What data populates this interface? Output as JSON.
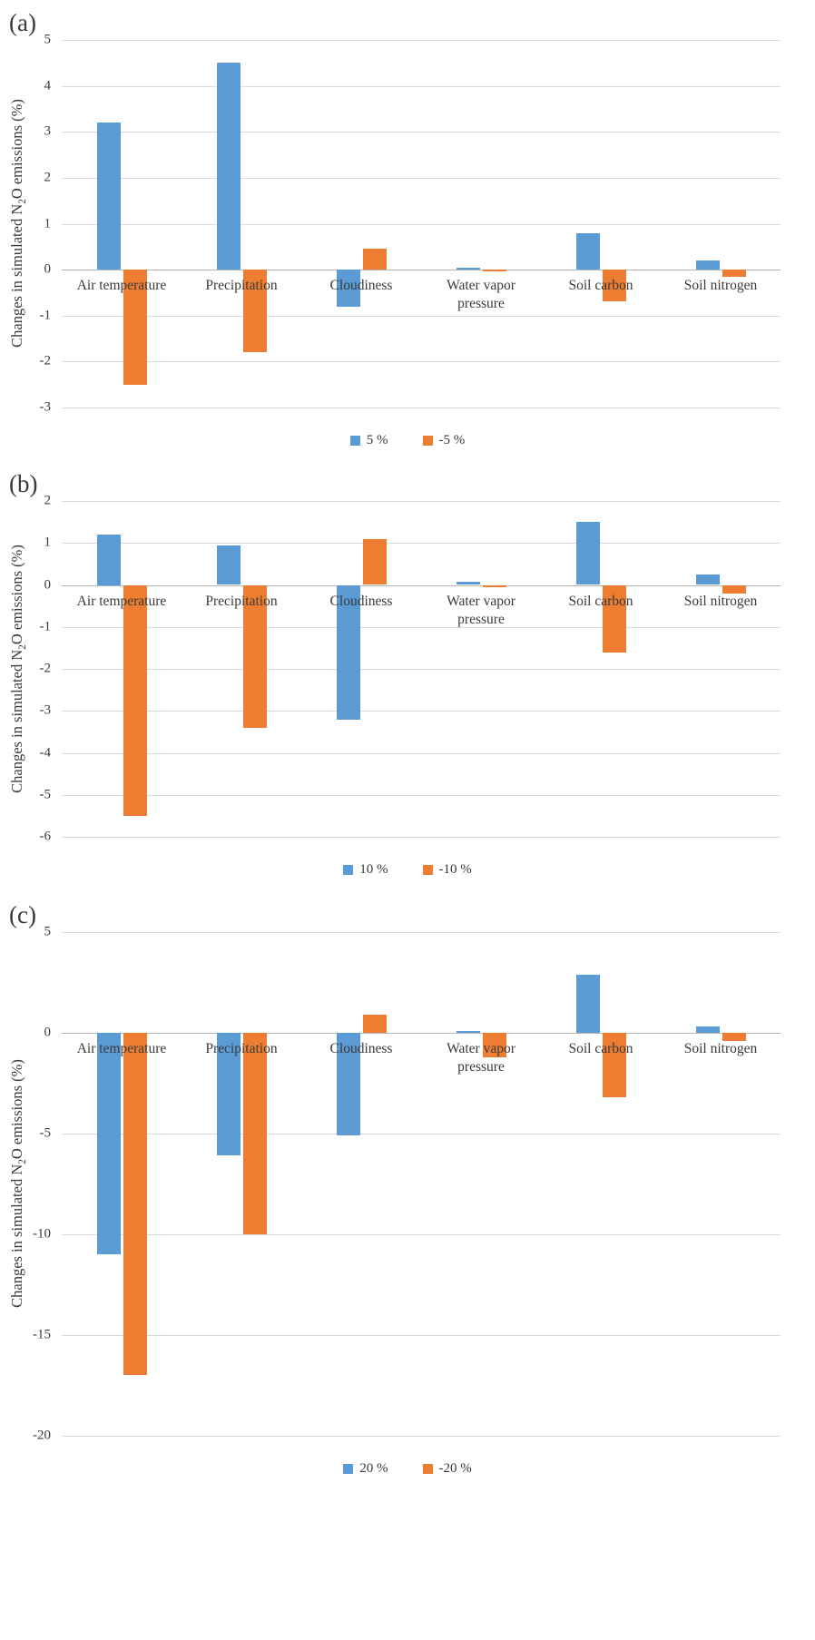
{
  "chart_data": [
    {
      "panel_label": "(a)",
      "type": "bar",
      "title": "",
      "xlabel": "",
      "ylabel": "Changes in simulated N2O emissions (%)",
      "ylabel_parts": {
        "pre": "Changes in simulated N",
        "sub": "2",
        "post": "O emissions (%)"
      },
      "categories": [
        "Air temperature",
        "Precipitation",
        "Cloudiness",
        "Water vapor pressure",
        "Soil carbon",
        "Soil nitrogen"
      ],
      "series": [
        {
          "name": "5 %",
          "color": "#5B9BD5",
          "values": [
            3.2,
            4.5,
            -0.8,
            0.05,
            0.8,
            0.2
          ]
        },
        {
          "name": "-5 %",
          "color": "#ED7D31",
          "values": [
            -2.5,
            -1.8,
            0.45,
            -0.03,
            -0.7,
            -0.15
          ]
        }
      ],
      "ylim": [
        -3,
        5
      ],
      "yticks": [
        5,
        4,
        3,
        2,
        1,
        0,
        -1,
        -2,
        -3
      ],
      "grid": true,
      "legend_position": "bottom"
    },
    {
      "panel_label": "(b)",
      "type": "bar",
      "title": "",
      "xlabel": "",
      "ylabel": "Changes in simulated N2O emissions (%)",
      "ylabel_parts": {
        "pre": "Changes in simulated N",
        "sub": "2",
        "post": "O emissions (%)"
      },
      "categories": [
        "Air temperature",
        "Precipitation",
        "Cloudiness",
        "Water vapor pressure",
        "Soil carbon",
        "Soil nitrogen"
      ],
      "series": [
        {
          "name": "10 %",
          "color": "#5B9BD5",
          "values": [
            1.2,
            0.95,
            -3.2,
            0.07,
            1.5,
            0.25
          ]
        },
        {
          "name": "-10 %",
          "color": "#ED7D31",
          "values": [
            -5.5,
            -3.4,
            1.1,
            -0.05,
            -1.6,
            -0.2
          ]
        }
      ],
      "ylim": [
        -6,
        2
      ],
      "yticks": [
        2,
        1,
        0,
        -1,
        -2,
        -3,
        -4,
        -5,
        -6
      ],
      "grid": true,
      "legend_position": "bottom"
    },
    {
      "panel_label": "(c)",
      "type": "bar",
      "title": "",
      "xlabel": "",
      "ylabel": "Changes in simulated N2O emissions (%)",
      "ylabel_parts": {
        "pre": "Changes in simulated N",
        "sub": "2",
        "post": "O emissions (%)"
      },
      "categories": [
        "Air temperature",
        "Precipitation",
        "Cloudiness",
        "Water vapor pressure",
        "Soil carbon",
        "Soil nitrogen"
      ],
      "series": [
        {
          "name": "20 %",
          "color": "#5B9BD5",
          "values": [
            -11,
            -6.1,
            -5.1,
            0.1,
            2.9,
            0.3
          ]
        },
        {
          "name": "-20 %",
          "color": "#ED7D31",
          "values": [
            -17,
            -10,
            0.9,
            -1.2,
            -3.2,
            -0.4
          ]
        }
      ],
      "ylim": [
        -20,
        5
      ],
      "yticks": [
        5,
        0,
        -5,
        -10,
        -15,
        -20
      ],
      "grid": true,
      "legend_position": "bottom"
    }
  ]
}
